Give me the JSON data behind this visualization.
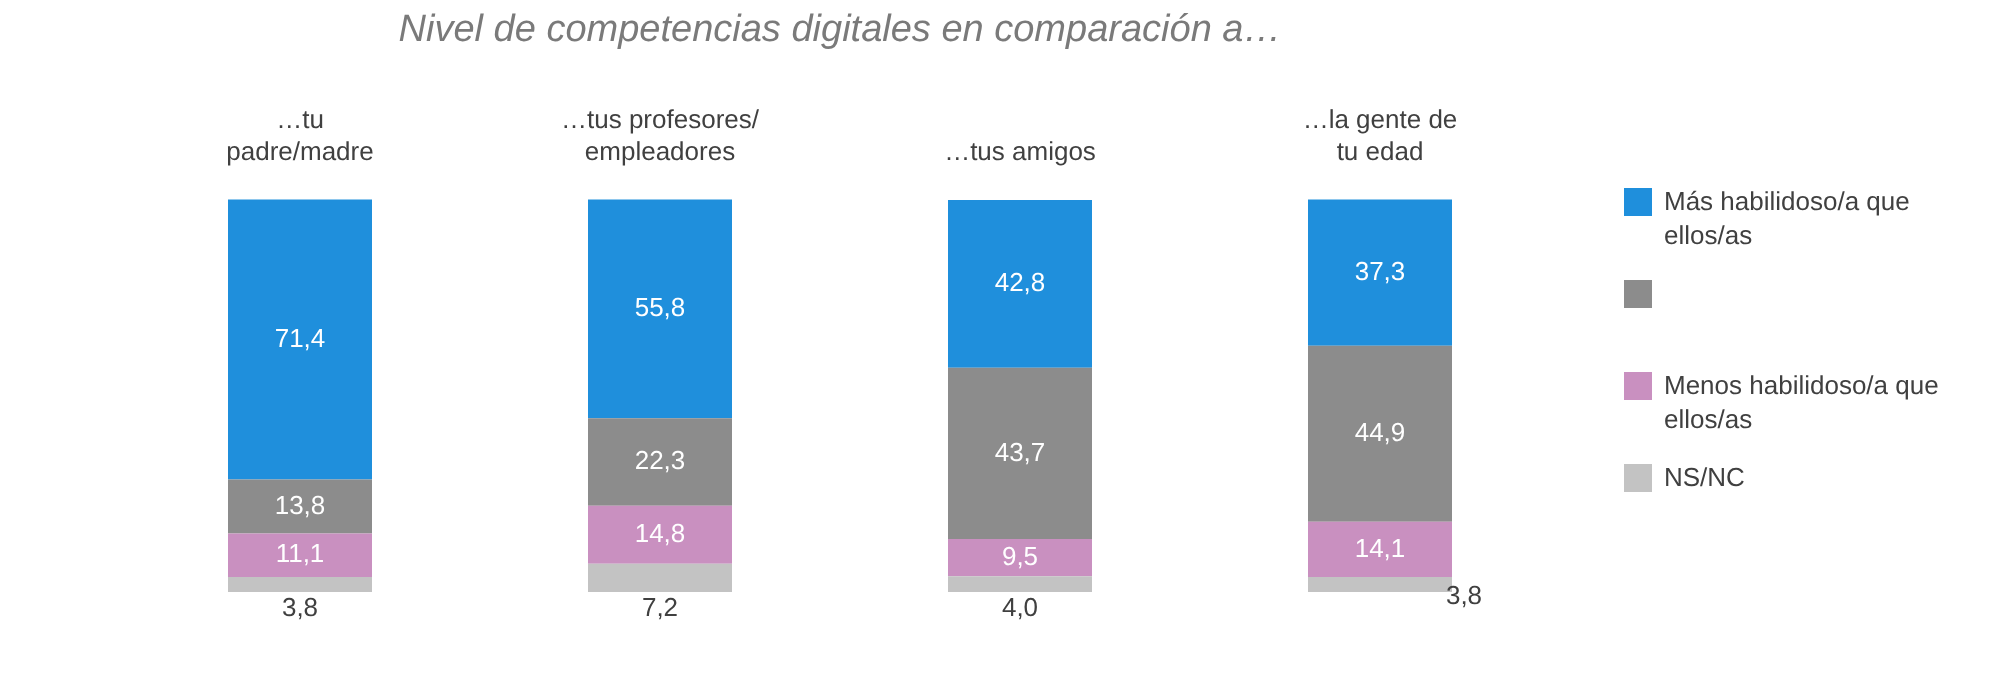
{
  "chart_data": {
    "type": "bar",
    "stacked": true,
    "title": "Nivel de competencias digitales en comparación a…",
    "categories": [
      "…tu\npadre/madre",
      "…tus profesores/\nempleadores",
      "…tus amigos",
      "…la gente de\ntu edad"
    ],
    "ylim": [
      0,
      101
    ],
    "grid": false,
    "legend": "right",
    "tick_labels": "x",
    "series": [
      {
        "name": "NS/NC",
        "color": "#c3c3c3",
        "values": [
          3.8,
          7.2,
          4.0,
          3.8
        ],
        "value_labels": [
          "3,8",
          "7,2",
          "4,0",
          "3,8"
        ]
      },
      {
        "name": "Menos habilidoso/a que ellos/as",
        "color": "#c990c0",
        "values": [
          11.1,
          14.8,
          9.5,
          14.1
        ],
        "value_labels": [
          "11,1",
          "14,8",
          "9,5",
          "14,1"
        ]
      },
      {
        "color": "#8c8c8c",
        "values": [
          13.8,
          22.3,
          43.7,
          44.9
        ],
        "value_labels": [
          "13,8",
          "22,3",
          "43,7",
          "44,9"
        ]
      },
      {
        "name": "Más habilidoso/a que ellos/as",
        "color": "#1f8fdc",
        "values": [
          71.4,
          55.8,
          42.8,
          37.3
        ],
        "value_labels": [
          "71,4",
          "55,8",
          "42,8",
          "37,3"
        ]
      }
    ]
  }
}
